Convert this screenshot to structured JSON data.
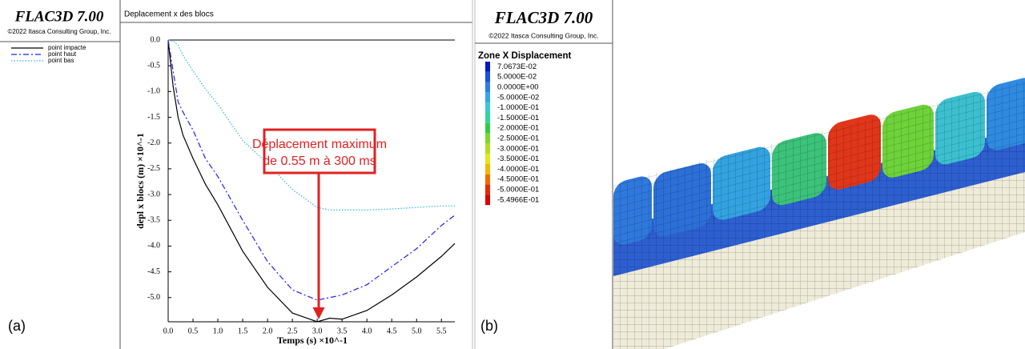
{
  "chart_data": {
    "type": "line",
    "title": "Deplacement x des blocs",
    "x_label": "Temps (s) ×10^-1",
    "y_label": "depl x blocs (m) ×10^-1",
    "x": [
      0,
      0.1,
      0.2,
      0.3,
      0.5,
      0.75,
      1.0,
      1.5,
      2.0,
      2.5,
      3.0,
      3.25,
      3.5,
      4.0,
      4.5,
      5.0,
      5.5,
      5.77
    ],
    "series": [
      {
        "name": "point impacte",
        "color": "#000000",
        "style": "solid",
        "values": [
          0,
          -0.9,
          -1.5,
          -1.85,
          -2.3,
          -2.8,
          -3.2,
          -4.1,
          -4.8,
          -5.3,
          -5.47,
          -5.4,
          -5.42,
          -5.25,
          -4.95,
          -4.6,
          -4.2,
          -3.95
        ]
      },
      {
        "name": "point haut",
        "color": "#1f1fff",
        "style": "dashdot",
        "values": [
          0,
          -0.6,
          -1.2,
          -1.4,
          -1.75,
          -2.3,
          -2.65,
          -3.5,
          -4.3,
          -4.85,
          -5.05,
          -5.0,
          -4.95,
          -4.75,
          -4.4,
          -4.05,
          -3.6,
          -3.4
        ]
      },
      {
        "name": "point bas",
        "color": "#2fb4e8",
        "style": "dotted",
        "values": [
          0,
          -0.02,
          -0.1,
          -0.3,
          -0.6,
          -0.95,
          -1.25,
          -1.95,
          -2.4,
          -2.9,
          -3.25,
          -3.3,
          -3.3,
          -3.3,
          -3.28,
          -3.25,
          -3.22,
          -3.22
        ]
      }
    ],
    "xlim": [
      0,
      5.77
    ],
    "ylim": [
      -5.47,
      0
    ],
    "xticks": [
      {
        "value": 0,
        "label": "0.0"
      },
      0.5,
      {
        "value": 1,
        "label": "1.0"
      },
      1.5,
      {
        "value": 2,
        "label": "2.0"
      },
      2.5,
      {
        "value": 3,
        "label": "3.0"
      },
      3.5,
      {
        "value": 4,
        "label": "4.0"
      },
      4.5,
      {
        "value": 5,
        "label": "5.0"
      },
      5.5
    ],
    "yticks": [
      {
        "value": 0,
        "label": "0.0"
      },
      -0.5,
      {
        "value": -1,
        "label": "-1.0"
      },
      -1.5,
      {
        "value": -2,
        "label": "-2.0"
      },
      -2.5,
      {
        "value": -3,
        "label": "-3.0"
      },
      -3.5,
      {
        "value": -4,
        "label": "-4.0"
      },
      -4.5,
      {
        "value": -5,
        "label": "-5.0"
      }
    ],
    "legend": "outside-left",
    "annotations": [
      "Déplacement maximum",
      "de 0.55 m à 300 ms"
    ]
  },
  "panel_a": {
    "software": "FLAC3D 7.00",
    "copyright": "©2022 Itasca Consulting Group, Inc.",
    "label": "(a)"
  },
  "panel_b": {
    "software": "FLAC3D 7.00",
    "copyright": "©2022 Itasca Consulting Group, Inc.",
    "label": "(b)",
    "legend_title": "Zone X Displacement",
    "levels": [
      {
        "label": "7.0673E-02",
        "color": "#0018c8"
      },
      {
        "label": "5.0000E-02",
        "color": "#1a4fe6"
      },
      {
        "label": "0.0000E+00",
        "color": "#2a7fe2"
      },
      {
        "label": "-5.0000E-02",
        "color": "#33a8e6"
      },
      {
        "label": "-1.0000E-01",
        "color": "#3cc8cc"
      },
      {
        "label": "-1.5000E-01",
        "color": "#2fd69a"
      },
      {
        "label": "-2.0000E-01",
        "color": "#33cc44"
      },
      {
        "label": "-2.5000E-01",
        "color": "#7fd62e"
      },
      {
        "label": "-3.0000E-01",
        "color": "#b5dc1e"
      },
      {
        "label": "-3.5000E-01",
        "color": "#e6e61a"
      },
      {
        "label": "-4.0000E-01",
        "color": "#f5b800"
      },
      {
        "label": "-4.5000E-01",
        "color": "#f06e00"
      },
      {
        "label": "-5.0000E-01",
        "color": "#e62a00"
      },
      {
        "label": "-5.4966E-01",
        "color": "#dd0000"
      }
    ]
  }
}
